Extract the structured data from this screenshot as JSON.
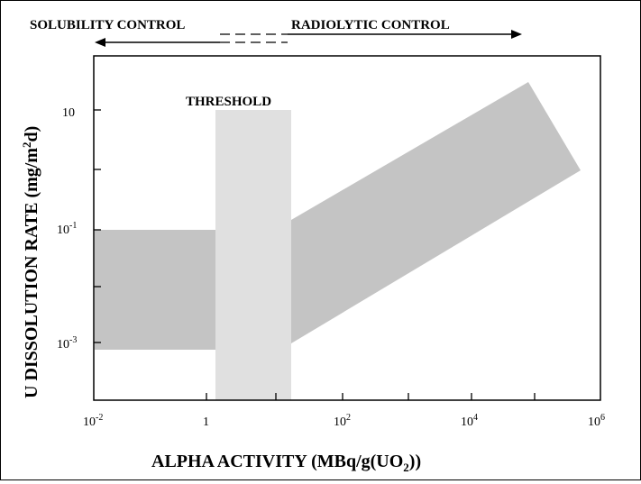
{
  "header": {
    "left_label": "SOLUBILITY CONTROL",
    "right_label": "RADIOLYTIC CONTROL"
  },
  "threshold_label": "THRESHOLD",
  "x_axis": {
    "title_prefix": "ALPHA ACTIVITY (MBq/g(UO",
    "title_subscript": "2",
    "title_suffix": "))",
    "ticks": [
      {
        "base": "10",
        "exp": "-2"
      },
      {
        "base": "1",
        "exp": ""
      },
      {
        "base": "10",
        "exp": "2"
      },
      {
        "base": "10",
        "exp": "4"
      },
      {
        "base": "10",
        "exp": "6"
      }
    ]
  },
  "y_axis": {
    "title_prefix": "U DISSOLUTION RATE (mg/m",
    "title_superscript": "2",
    "title_suffix": "d)",
    "ticks": [
      {
        "base": "10",
        "exp": ""
      },
      {
        "base": "10",
        "exp": "-1"
      },
      {
        "base": "10",
        "exp": "-3"
      }
    ]
  },
  "colors": {
    "band": "#c4c4c4",
    "threshold": "#e0e0e0",
    "ink": "#000000"
  }
}
